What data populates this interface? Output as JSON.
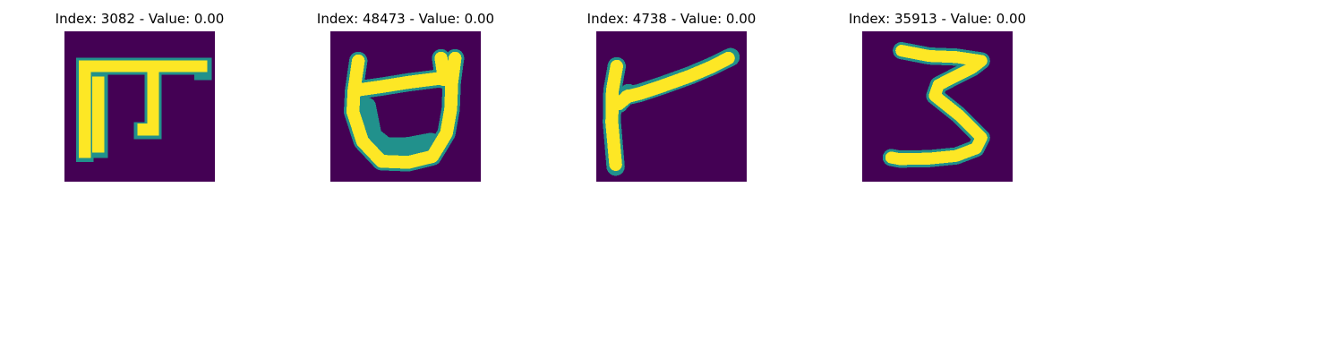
{
  "colors": {
    "background": "#440154",
    "stroke_edge": "#21918c",
    "stroke_core": "#fde725"
  },
  "panels": [
    {
      "title": "Index: 3082 - Value: 0.00"
    },
    {
      "title": "Index: 48473 - Value: 0.00"
    },
    {
      "title": "Index: 4738 - Value: 0.00"
    },
    {
      "title": "Index: 35913 - Value: 0.00"
    }
  ]
}
